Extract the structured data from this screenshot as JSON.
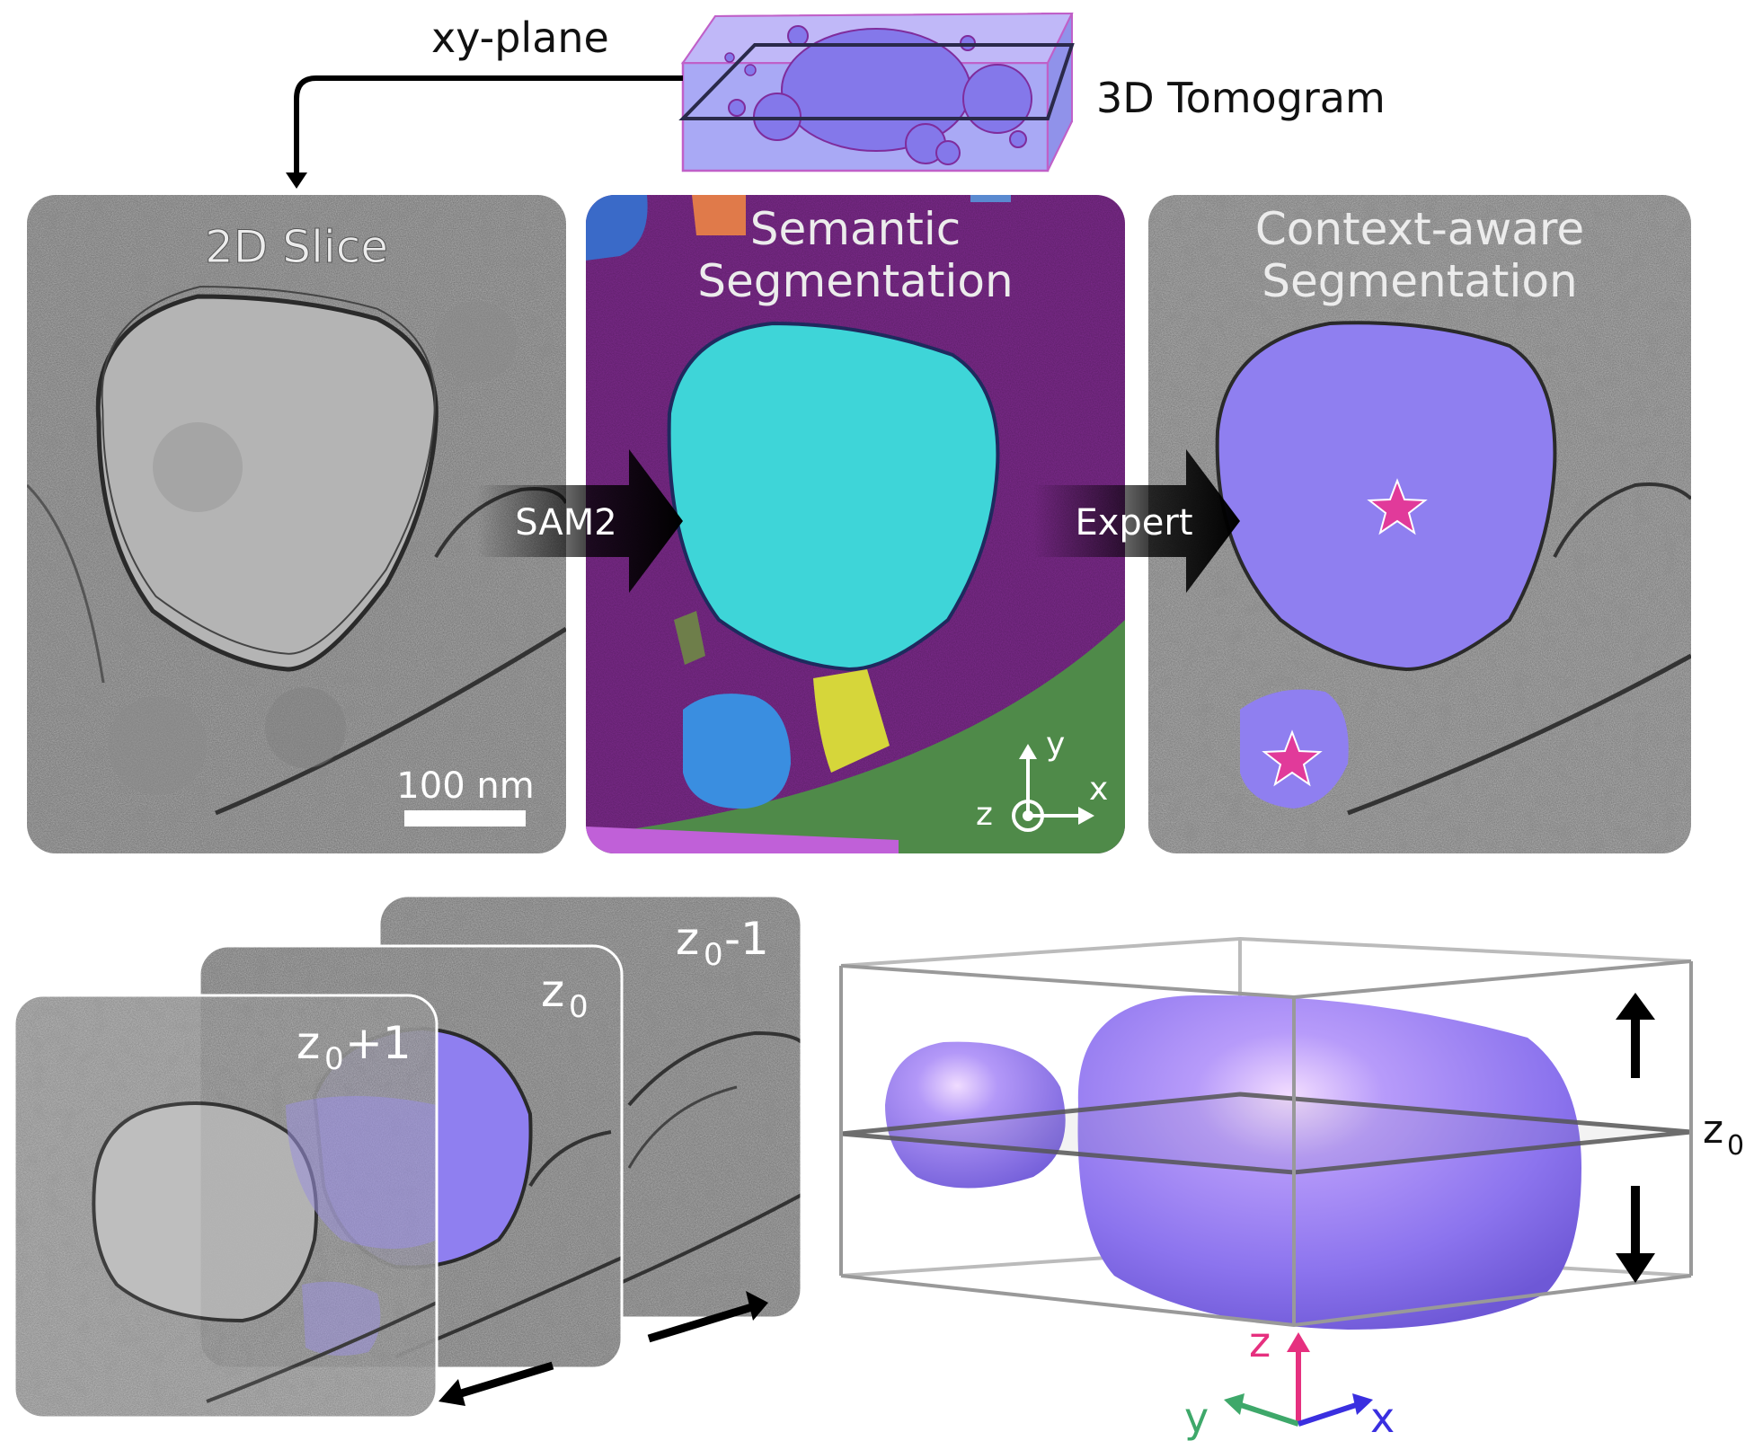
{
  "top": {
    "xy_plane_label": "xy-plane",
    "tomogram_label": "3D Tomogram"
  },
  "panels": {
    "slice_title": "2D Slice",
    "scale_bar_label": "100 nm",
    "semantic_title_line1": "Semantic",
    "semantic_title_line2": "Segmentation",
    "context_title_line1": "Context-aware",
    "context_title_line2": "Segmentation"
  },
  "arrows": {
    "sam2_label": "SAM2",
    "expert_label": "Expert"
  },
  "axes_2d": {
    "y": "y",
    "z": "z",
    "x": "x"
  },
  "stack": {
    "front_label": "z",
    "front_sub": "0",
    "front_suffix": "+1",
    "middle_label": "z",
    "middle_sub": "0",
    "back_label": "z",
    "back_sub": "0",
    "back_suffix": "-1"
  },
  "volume": {
    "plane_label": "z",
    "plane_sub": "0"
  },
  "axes_3d": {
    "z": "z",
    "y": "y",
    "x": "x",
    "z_color": "#e6307f",
    "y_color": "#3ea86a",
    "x_color": "#3a2fe0"
  },
  "colors": {
    "segment_purple": "#8f7ff0",
    "semantic_background": "#7b2a8a",
    "cyan": "#3fd6d6",
    "star": "#e13a9a"
  }
}
